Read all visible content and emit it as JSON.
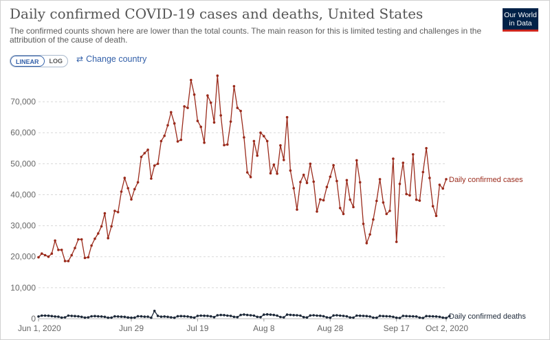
{
  "header": {
    "title": "Daily confirmed COVID-19 cases and deaths, United States",
    "subtitle": "The confirmed counts shown here are lower than the total counts. The main reason for this is limited testing and challenges in the attribution of the cause of death.",
    "logo_line1": "Our World",
    "logo_line2": "in Data"
  },
  "controls": {
    "linear_label": "LINEAR",
    "log_label": "LOG",
    "change_country_label": "Change country",
    "change_country_icon": "swap-arrows-icon"
  },
  "colors": {
    "cases": "#9a2a1b",
    "deaths": "#1c2838",
    "grid": "#d8d8d8",
    "accent": "#3360a9",
    "logo_bg": "#002147",
    "logo_bar": "#ce261e"
  },
  "chart_data": {
    "type": "line",
    "x_start": "Jun 1, 2020",
    "x_end": "Oct 2, 2020",
    "x_tick_labels": [
      "Jun 1, 2020",
      "Jun 29",
      "Jul 19",
      "Aug 8",
      "Aug 28",
      "Sep 17",
      "Oct 2, 2020"
    ],
    "x_tick_days": [
      0,
      28,
      48,
      68,
      88,
      108,
      123
    ],
    "y_ticks": [
      0,
      10000,
      20000,
      30000,
      40000,
      50000,
      60000,
      70000
    ],
    "y_tick_labels": [
      "0",
      "10,000",
      "20,000",
      "30,000",
      "40,000",
      "50,000",
      "60,000",
      "70,000"
    ],
    "ylim": [
      0,
      78000
    ],
    "grid": true,
    "legend": "line-end labels",
    "series": [
      {
        "name": "Daily confirmed cases",
        "values": [
          19800,
          21000,
          20500,
          20000,
          21000,
          25200,
          22200,
          22200,
          18600,
          18600,
          20500,
          22800,
          25600,
          25600,
          19600,
          19800,
          23600,
          25800,
          27500,
          29800,
          34000,
          26000,
          29800,
          34800,
          34400,
          41000,
          45400,
          42100,
          38500,
          41800,
          44000,
          52200,
          53400,
          54500,
          45200,
          49400,
          50000,
          57300,
          59000,
          62400,
          66600,
          63000,
          57200,
          57700,
          68500,
          68000,
          77000,
          72300,
          63800,
          61900,
          56800,
          72000,
          69700,
          63300,
          78400,
          65600,
          56000,
          56200,
          63600,
          75000,
          68000,
          67000,
          58500,
          47200,
          45700,
          57300,
          52600,
          60000,
          58900,
          57300,
          46900,
          49700,
          46800,
          55900,
          51200,
          65000,
          47800,
          42100,
          35200,
          44100,
          46400,
          43800,
          50000,
          44200,
          34600,
          38500,
          38200,
          42500,
          45800,
          49500,
          44400,
          35700,
          33800,
          44700,
          38400,
          36000,
          51100,
          44000,
          30600,
          24400,
          27200,
          32000,
          38000,
          45000,
          37500,
          33800,
          34800,
          51600,
          24800,
          43500,
          50300,
          40200,
          39800,
          53000,
          38400,
          38100,
          47300,
          55000,
          45400,
          36300,
          33200,
          43200,
          42000,
          45000
        ],
        "color": "#9a2a1b"
      },
      {
        "name": "Daily confirmed deaths",
        "values": [
          700,
          1000,
          1000,
          950,
          850,
          700,
          650,
          350,
          450,
          1000,
          900,
          850,
          750,
          600,
          350,
          420,
          780,
          850,
          750,
          720,
          600,
          300,
          350,
          750,
          720,
          650,
          600,
          400,
          300,
          350,
          800,
          750,
          650,
          650,
          300,
          2500,
          900,
          650,
          700,
          600,
          450,
          300,
          800,
          850,
          800,
          700,
          500,
          350,
          900,
          1000,
          950,
          900,
          750,
          500,
          1100,
          1200,
          1150,
          1000,
          900,
          600,
          500,
          1200,
          1350,
          1200,
          1100,
          1000,
          600,
          500,
          1300,
          1400,
          1300,
          1200,
          1000,
          550,
          450,
          1300,
          1250,
          1150,
          1100,
          1000,
          500,
          400,
          1050,
          1100,
          1000,
          950,
          800,
          450,
          300,
          1050,
          1100,
          1000,
          900,
          750,
          400,
          350,
          1000,
          950,
          900,
          850,
          700,
          350,
          300,
          900,
          850,
          800,
          750,
          600,
          300,
          250,
          900,
          850,
          800,
          750,
          700,
          350,
          250,
          850,
          800,
          750,
          700,
          600,
          350,
          250,
          850
        ],
        "color": "#1c2838"
      }
    ]
  }
}
